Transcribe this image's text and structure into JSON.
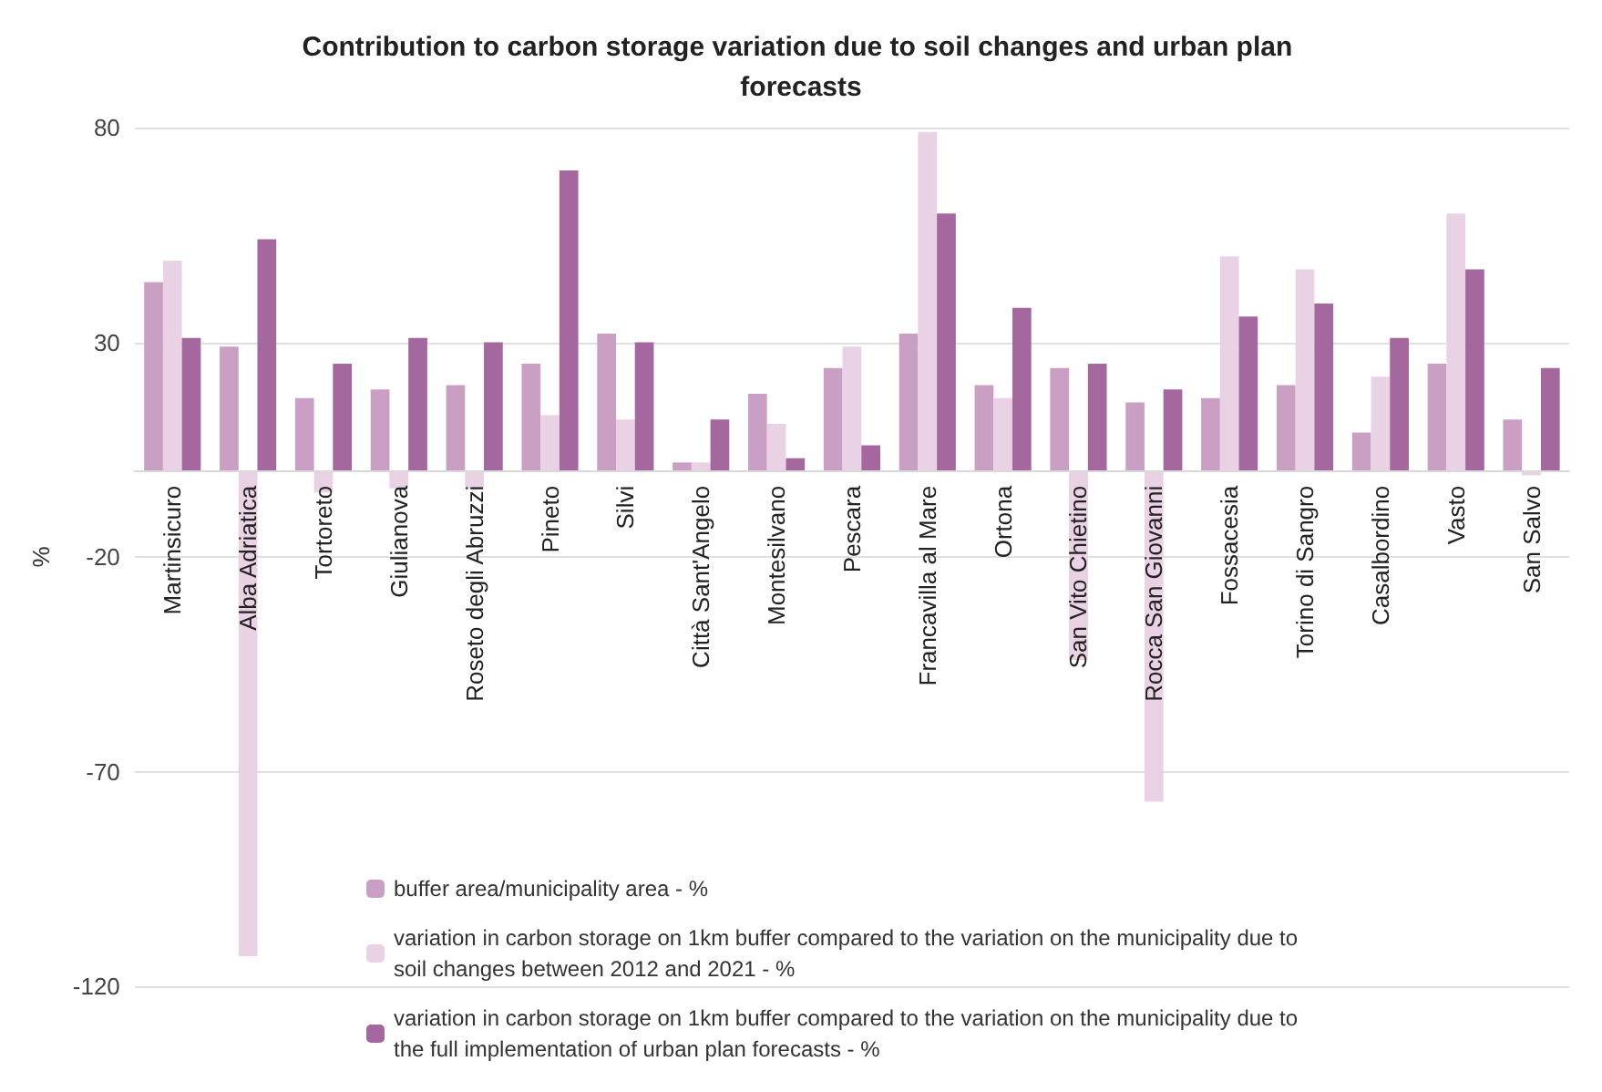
{
  "chart_data": {
    "type": "bar",
    "title": "Contribution to carbon storage variation due to soil changes and urban plan forecasts",
    "ylabel": "%",
    "categories": [
      "Martinsicuro",
      "Alba Adriatica",
      "Tortoreto",
      "Giulianova",
      "Roseto degli Abruzzi",
      "Pineto",
      "Silvi",
      "Città Sant'Angelo",
      "Montesilvano",
      "Pescara",
      "Francavilla al Mare",
      "Ortona",
      "San Vito Chietino",
      "Rocca San Giovanni",
      "Fossacesia",
      "Torino di Sangro",
      "Casalbordino",
      "Vasto",
      "San Salvo"
    ],
    "series": [
      {
        "name": "buffer area/municipality area - %",
        "color": "#c9a0c4",
        "values": [
          44,
          29,
          17,
          19,
          20,
          25,
          32,
          2,
          18,
          24,
          32,
          20,
          24,
          16,
          17,
          20,
          9,
          25,
          12
        ]
      },
      {
        "name": "variation in carbon storage on 1km buffer compared to the variation on the municipality due to soil changes between 2012 and 2021 - %",
        "color": "#e8d2e4",
        "values": [
          49,
          -113,
          -5,
          -4,
          -4,
          13,
          12,
          2,
          11,
          29,
          79,
          17,
          -44,
          -77,
          50,
          47,
          22,
          60,
          -1
        ]
      },
      {
        "name": "variation in carbon storage on 1km buffer compared to the variation on the municipality due to the full implementation of urban plan forecasts - %",
        "color": "#a4679e",
        "values": [
          31,
          54,
          25,
          31,
          30,
          70,
          30,
          12,
          3,
          6,
          60,
          38,
          25,
          19,
          36,
          39,
          31,
          47,
          24
        ]
      }
    ],
    "ylim": [
      -120,
      80
    ],
    "yticks": [
      -120,
      -70,
      -20,
      30,
      80
    ],
    "grid": "y",
    "legend": "bottom right"
  }
}
